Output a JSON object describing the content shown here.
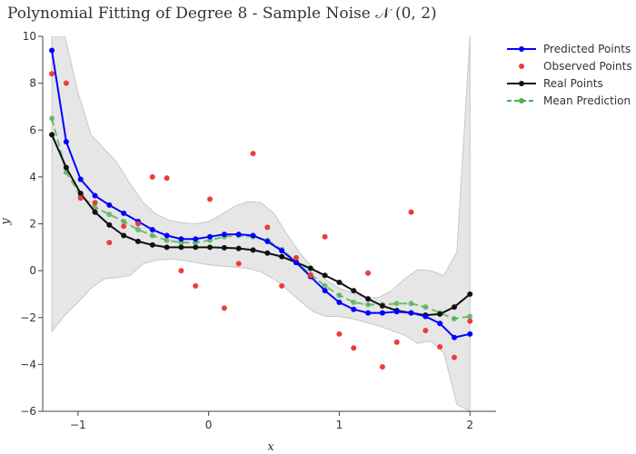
{
  "chart_data": {
    "type": "line",
    "title": "Polynomial Fitting of Degree 8 - Sample Noise 𝒩 (0, 2)",
    "xlabel": "x",
    "ylabel": "y",
    "xlim": [
      -1.27,
      2.2
    ],
    "ylim": [
      -6,
      10
    ],
    "x_ticks": [
      -1,
      0,
      1,
      2
    ],
    "y_ticks": [
      -6,
      -4,
      -2,
      0,
      2,
      4,
      6,
      8,
      10
    ],
    "grid": false,
    "legend": "top-right",
    "confidence_band": {
      "x": [
        -1.2,
        -1.1,
        -1.0,
        -0.9,
        -0.8,
        -0.7,
        -0.6,
        -0.5,
        -0.4,
        -0.3,
        -0.2,
        -0.1,
        0.0,
        0.1,
        0.2,
        0.3,
        0.4,
        0.5,
        0.6,
        0.7,
        0.8,
        0.9,
        1.0,
        1.1,
        1.2,
        1.3,
        1.4,
        1.5,
        1.6,
        1.7,
        1.8,
        1.9,
        2.0
      ],
      "upper": [
        10.5,
        10.0,
        7.6,
        5.8,
        5.2,
        4.6,
        3.7,
        2.9,
        2.4,
        2.15,
        2.05,
        2.0,
        2.1,
        2.4,
        2.75,
        2.95,
        2.9,
        2.45,
        1.55,
        0.75,
        0.1,
        -0.4,
        -0.75,
        -0.95,
        -1.15,
        -1.15,
        -0.85,
        -0.35,
        0.05,
        0.0,
        -0.2,
        0.8,
        10.5
      ],
      "lower": [
        -2.6,
        -1.9,
        -1.35,
        -0.75,
        -0.35,
        -0.3,
        -0.2,
        0.3,
        0.45,
        0.5,
        0.45,
        0.35,
        0.25,
        0.2,
        0.15,
        0.1,
        -0.05,
        -0.35,
        -0.8,
        -1.3,
        -1.75,
        -1.95,
        -1.95,
        -2.05,
        -2.2,
        -2.35,
        -2.55,
        -2.75,
        -3.1,
        -3.0,
        -3.5,
        -5.7,
        -6.5
      ]
    },
    "series": [
      {
        "name": "Predicted Points",
        "style": "lines+markers",
        "color": "#0000ff",
        "x": [
          -1.2,
          -1.09,
          -0.98,
          -0.87,
          -0.76,
          -0.65,
          -0.54,
          -0.43,
          -0.32,
          -0.21,
          -0.1,
          0.01,
          0.12,
          0.23,
          0.34,
          0.45,
          0.56,
          0.67,
          0.78,
          0.89,
          1.0,
          1.11,
          1.22,
          1.33,
          1.44,
          1.55,
          1.66,
          1.77,
          1.88,
          2.0
        ],
        "y": [
          9.4,
          5.5,
          3.9,
          3.2,
          2.8,
          2.45,
          2.1,
          1.75,
          1.5,
          1.35,
          1.35,
          1.45,
          1.55,
          1.55,
          1.5,
          1.25,
          0.85,
          0.35,
          -0.25,
          -0.85,
          -1.35,
          -1.65,
          -1.8,
          -1.8,
          -1.75,
          -1.8,
          -1.95,
          -2.25,
          -2.85,
          -2.7
        ]
      },
      {
        "name": "Observed Points",
        "style": "markers",
        "color": "#ef3b3b",
        "x": [
          -1.2,
          -1.09,
          -0.98,
          -0.87,
          -0.76,
          -0.65,
          -0.54,
          -0.43,
          -0.32,
          -0.21,
          -0.1,
          0.01,
          0.12,
          0.23,
          0.34,
          0.45,
          0.56,
          0.67,
          0.78,
          0.89,
          1.0,
          1.11,
          1.22,
          1.33,
          1.44,
          1.55,
          1.66,
          1.77,
          1.88,
          2.0
        ],
        "y": [
          8.4,
          8.0,
          3.1,
          2.9,
          1.2,
          1.9,
          2.0,
          4.0,
          3.95,
          0.0,
          -0.65,
          3.05,
          -1.6,
          0.3,
          5.0,
          1.85,
          -0.65,
          0.55,
          -0.2,
          1.45,
          -2.7,
          -3.3,
          -0.1,
          -4.1,
          -3.05,
          2.5,
          -2.55,
          -3.25,
          -3.7,
          -2.15
        ]
      },
      {
        "name": "Real Points",
        "style": "lines+markers",
        "color": "#111111",
        "x": [
          -1.2,
          -1.09,
          -0.98,
          -0.87,
          -0.76,
          -0.65,
          -0.54,
          -0.43,
          -0.32,
          -0.21,
          -0.1,
          0.01,
          0.12,
          0.23,
          0.34,
          0.45,
          0.56,
          0.67,
          0.78,
          0.89,
          1.0,
          1.11,
          1.22,
          1.33,
          1.44,
          1.55,
          1.66,
          1.77,
          1.88,
          2.0
        ],
        "y": [
          5.8,
          4.4,
          3.3,
          2.5,
          1.95,
          1.5,
          1.25,
          1.1,
          1.0,
          1.0,
          1.0,
          1.0,
          0.98,
          0.95,
          0.88,
          0.75,
          0.6,
          0.35,
          0.1,
          -0.2,
          -0.5,
          -0.85,
          -1.2,
          -1.5,
          -1.7,
          -1.8,
          -1.9,
          -1.85,
          -1.55,
          -1.0
        ]
      },
      {
        "name": "Mean Prediction",
        "style": "dashed-lines+markers",
        "color": "#4caf50",
        "x": [
          -1.2,
          -1.09,
          -0.98,
          -0.87,
          -0.76,
          -0.65,
          -0.54,
          -0.43,
          -0.32,
          -0.21,
          -0.1,
          0.01,
          0.12,
          0.23,
          0.34,
          0.45,
          0.56,
          0.67,
          0.78,
          0.89,
          1.0,
          1.11,
          1.22,
          1.33,
          1.44,
          1.55,
          1.66,
          1.77,
          1.88,
          2.0
        ],
        "y": [
          6.5,
          4.2,
          3.2,
          2.7,
          2.4,
          2.1,
          1.75,
          1.5,
          1.3,
          1.2,
          1.2,
          1.3,
          1.45,
          1.5,
          1.45,
          1.3,
          0.9,
          0.4,
          -0.15,
          -0.65,
          -1.05,
          -1.35,
          -1.45,
          -1.45,
          -1.4,
          -1.4,
          -1.55,
          -1.8,
          -2.05,
          -1.95
        ]
      }
    ]
  }
}
